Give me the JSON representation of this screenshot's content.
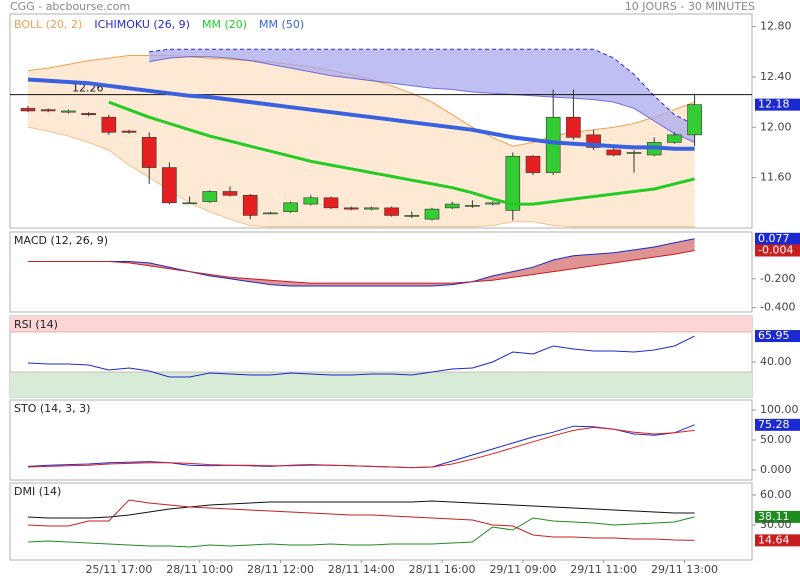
{
  "header": {
    "source": "CGG - abcbourse.com",
    "period": "10 JOURS - 30 MINUTES"
  },
  "chart_data": [
    {
      "type": "candlestick",
      "up_color": "#33cc33",
      "down_color": "#e62020",
      "price_tag_color": "#1a2ad0",
      "open": [
        12.15,
        12.14,
        12.12,
        12.11,
        12.08,
        11.97,
        11.92,
        11.68,
        11.4,
        11.41,
        11.49,
        11.46,
        11.32,
        11.33,
        11.39,
        11.44,
        11.36,
        11.35,
        11.36,
        11.3,
        11.27,
        11.36,
        11.38,
        11.39,
        11.34,
        11.77,
        11.64,
        12.08,
        11.94,
        11.82,
        11.8,
        11.78,
        11.88,
        11.94
      ],
      "high": [
        12.17,
        12.15,
        12.14,
        12.12,
        12.1,
        11.98,
        11.96,
        11.72,
        11.45,
        11.5,
        11.53,
        11.47,
        11.33,
        11.41,
        11.46,
        11.45,
        11.37,
        11.37,
        11.37,
        11.33,
        11.36,
        11.41,
        11.42,
        11.41,
        11.8,
        11.78,
        12.3,
        12.3,
        11.98,
        11.85,
        11.82,
        11.92,
        11.96,
        12.26
      ],
      "low": [
        12.12,
        12.12,
        12.11,
        12.09,
        11.94,
        11.95,
        11.55,
        11.39,
        11.39,
        11.4,
        11.45,
        11.27,
        11.31,
        11.32,
        11.38,
        11.35,
        11.34,
        11.34,
        11.29,
        11.28,
        11.26,
        11.35,
        11.36,
        11.38,
        11.26,
        11.62,
        11.62,
        11.9,
        11.82,
        11.77,
        11.64,
        11.77,
        11.87,
        11.85
      ],
      "close": [
        12.13,
        12.13,
        12.13,
        12.1,
        11.96,
        11.96,
        11.68,
        11.4,
        11.4,
        11.49,
        11.46,
        11.3,
        11.32,
        11.4,
        11.44,
        11.36,
        11.35,
        11.36,
        11.3,
        11.3,
        11.35,
        11.39,
        11.38,
        11.4,
        11.77,
        11.64,
        12.08,
        11.92,
        11.84,
        11.78,
        11.8,
        11.88,
        11.94,
        12.18
      ],
      "series": [
        {
          "name": "BOLL (20, 2)",
          "color": "#f0a050",
          "fill": "#fde2c6",
          "upper": [
            12.45,
            12.47,
            12.5,
            12.53,
            12.55,
            12.57,
            12.57,
            12.57,
            12.56,
            12.55,
            12.54,
            12.53,
            12.52,
            12.5,
            12.48,
            12.45,
            12.42,
            12.38,
            12.33,
            12.27,
            12.2,
            12.1,
            12.0,
            11.92,
            11.85,
            11.88,
            11.93,
            11.96,
            11.98,
            12.0,
            12.03,
            12.08,
            12.14,
            12.2
          ],
          "lower": [
            12.0,
            11.97,
            11.93,
            11.88,
            11.82,
            11.7,
            11.6,
            11.5,
            11.4,
            11.33,
            11.27,
            11.22,
            11.21,
            11.21,
            11.21,
            11.21,
            11.21,
            11.21,
            11.21,
            11.21,
            11.21,
            11.21,
            11.21,
            11.22,
            11.25,
            11.25,
            11.22,
            11.21,
            11.21,
            11.21,
            11.21,
            11.21,
            11.21,
            11.21
          ]
        },
        {
          "name": "ICHIMOKU (26, 9)",
          "color": "#2a2ad0",
          "fill": "#a9a9ee",
          "upper": [
            null,
            null,
            null,
            null,
            null,
            null,
            12.6,
            12.62,
            12.62,
            12.62,
            12.62,
            12.62,
            12.62,
            12.62,
            12.62,
            12.62,
            12.62,
            12.62,
            12.62,
            12.62,
            12.62,
            12.62,
            12.62,
            12.62,
            12.62,
            12.62,
            12.62,
            12.62,
            12.62,
            12.55,
            12.42,
            12.25,
            12.1,
            12.02
          ],
          "lower": [
            null,
            null,
            null,
            null,
            null,
            null,
            12.52,
            12.55,
            12.56,
            12.56,
            12.55,
            12.53,
            12.5,
            12.47,
            12.44,
            12.41,
            12.39,
            12.37,
            12.35,
            12.33,
            12.31,
            12.3,
            12.28,
            12.27,
            12.26,
            12.25,
            12.24,
            12.23,
            12.22,
            12.2,
            12.15,
            12.05,
            11.95,
            11.88
          ]
        },
        {
          "name": "MM (20)",
          "color": "#22cc22",
          "width": 3,
          "values": [
            null,
            null,
            null,
            null,
            12.2,
            12.14,
            12.08,
            12.03,
            11.98,
            11.93,
            11.89,
            11.85,
            11.81,
            11.77,
            11.73,
            11.7,
            11.67,
            11.64,
            11.61,
            11.58,
            11.55,
            11.52,
            11.48,
            11.43,
            11.39,
            11.39,
            11.41,
            11.43,
            11.45,
            11.47,
            11.49,
            11.51,
            11.55,
            11.59
          ]
        },
        {
          "name": "MM (50)",
          "color": "#3a62e0",
          "width": 4,
          "values": [
            12.38,
            12.37,
            12.36,
            12.35,
            12.33,
            12.31,
            12.29,
            12.27,
            12.25,
            12.24,
            12.22,
            12.2,
            12.18,
            12.16,
            12.14,
            12.12,
            12.1,
            12.08,
            12.06,
            12.04,
            12.02,
            12.0,
            11.98,
            11.95,
            11.92,
            11.9,
            11.88,
            11.87,
            11.86,
            11.85,
            11.84,
            11.84,
            11.83,
            11.83
          ]
        }
      ],
      "reference_line": 12.26,
      "ylim": [
        11.2,
        12.9
      ],
      "yticks": [
        {
          "value": 12.8,
          "label": "12.80"
        },
        {
          "value": 12.4,
          "label": "12.40"
        },
        {
          "value": 12.0,
          "label": "12.00"
        },
        {
          "value": 11.6,
          "label": "11.60"
        }
      ]
    },
    {
      "type": "line",
      "title": "MACD (12, 26, 9)",
      "fill_color": "#d87878",
      "series": [
        {
          "color": "#1a2ad0",
          "tag": true,
          "values": [
            -0.08,
            -0.08,
            -0.08,
            -0.08,
            -0.08,
            -0.08,
            -0.09,
            -0.12,
            -0.15,
            -0.18,
            -0.2,
            -0.22,
            -0.24,
            -0.25,
            -0.25,
            -0.25,
            -0.25,
            -0.25,
            -0.25,
            -0.25,
            -0.25,
            -0.24,
            -0.22,
            -0.18,
            -0.15,
            -0.12,
            -0.07,
            -0.04,
            -0.03,
            -0.02,
            0.0,
            0.02,
            0.05,
            0.077
          ]
        },
        {
          "color": "#c81e1e",
          "tag": true,
          "values": [
            -0.08,
            -0.08,
            -0.08,
            -0.08,
            -0.08,
            -0.09,
            -0.11,
            -0.13,
            -0.15,
            -0.17,
            -0.19,
            -0.2,
            -0.21,
            -0.22,
            -0.23,
            -0.23,
            -0.23,
            -0.23,
            -0.23,
            -0.23,
            -0.23,
            -0.23,
            -0.22,
            -0.21,
            -0.19,
            -0.17,
            -0.15,
            -0.13,
            -0.11,
            -0.09,
            -0.07,
            -0.05,
            -0.03,
            -0.004
          ]
        }
      ],
      "ylim": [
        -0.43,
        0.124
      ],
      "yticks": [
        {
          "value": -0.2,
          "label": "-0.200"
        },
        {
          "value": -0.4,
          "label": "-0.400"
        }
      ]
    },
    {
      "type": "line",
      "title": "RSI (14)",
      "bands": [
        30,
        70
      ],
      "band_colors": [
        "#d6ecd6",
        "#fbd6d6"
      ],
      "series": [
        {
          "color": "#1a2ad0",
          "tag": true,
          "values": [
            39,
            38,
            38,
            37,
            32,
            34,
            31,
            25,
            25,
            29,
            28,
            27,
            27,
            29,
            28,
            27,
            27,
            28,
            28,
            27,
            30,
            33,
            34,
            40,
            50,
            48,
            56,
            53,
            51,
            51,
            50,
            52,
            56,
            65.95
          ]
        }
      ],
      "ylim": [
        5,
        86
      ],
      "yticks": [
        {
          "value": 40,
          "label": "40.00"
        }
      ]
    },
    {
      "type": "line",
      "title": "STO (14, 3, 3)",
      "series": [
        {
          "color": "#1a2ad0",
          "tag": true,
          "values": [
            6,
            8,
            9,
            10,
            12,
            13,
            14,
            12,
            8,
            7,
            8,
            7,
            6,
            8,
            9,
            8,
            7,
            6,
            5,
            4,
            5,
            15,
            25,
            35,
            45,
            55,
            63,
            73,
            72,
            68,
            60,
            58,
            62,
            75.28
          ]
        },
        {
          "color": "#e02020",
          "values": [
            5,
            6,
            7,
            8,
            10,
            11,
            12,
            12,
            11,
            9,
            8,
            8,
            7,
            7,
            8,
            8,
            7,
            6,
            5,
            4,
            5,
            10,
            18,
            27,
            37,
            47,
            57,
            66,
            71,
            68,
            63,
            60,
            62,
            66
          ]
        }
      ],
      "ylim": [
        -16.7,
        116.7
      ],
      "yticks": [
        {
          "value": 100,
          "label": "100.00"
        },
        {
          "value": 50,
          "label": "50.00"
        },
        {
          "value": 0,
          "label": "0.000"
        }
      ]
    },
    {
      "type": "line",
      "title": "DMI (14)",
      "series": [
        {
          "color": "#111111",
          "values": [
            38,
            37,
            37,
            37,
            38,
            40,
            43,
            46,
            48,
            50,
            51,
            52,
            53,
            53,
            53,
            53,
            53,
            53,
            53,
            53,
            54,
            53,
            52,
            51,
            50,
            49,
            48,
            47,
            46,
            45,
            44,
            43,
            42,
            42
          ]
        },
        {
          "color": "#1e8c1e",
          "tag": true,
          "values": [
            13,
            14,
            13,
            12,
            11,
            10,
            9,
            9,
            8,
            10,
            9,
            10,
            11,
            10,
            10,
            11,
            10,
            10,
            11,
            11,
            11,
            12,
            13,
            28,
            25,
            37,
            34,
            33,
            32,
            30,
            31,
            32,
            33,
            38.11
          ]
        },
        {
          "color": "#c81e1e",
          "tag": true,
          "values": [
            30,
            29,
            29,
            34,
            34,
            55,
            52,
            50,
            48,
            47,
            46,
            45,
            44,
            43,
            42,
            41,
            40,
            40,
            39,
            38,
            37,
            36,
            35,
            30,
            29,
            20,
            18,
            18,
            17,
            17,
            16,
            16,
            15,
            14.64
          ]
        }
      ],
      "ylim": [
        -5,
        72
      ],
      "yticks": [
        {
          "value": 60,
          "label": "60.00"
        },
        {
          "value": 30,
          "label": "30.00"
        }
      ],
      "xticks": [
        {
          "value": 4.5,
          "label": "25/11 17:00"
        },
        {
          "value": 8.5,
          "label": "28/11 10:00"
        },
        {
          "value": 12.5,
          "label": "28/11 12:00"
        },
        {
          "value": 16.5,
          "label": "28/11 14:00"
        },
        {
          "value": 20.5,
          "label": "28/11 16:00"
        },
        {
          "value": 24.5,
          "label": "29/11 09:00"
        },
        {
          "value": 28.5,
          "label": "29/11 11:00"
        },
        {
          "value": 32.5,
          "label": "29/11 13:00"
        }
      ]
    }
  ]
}
